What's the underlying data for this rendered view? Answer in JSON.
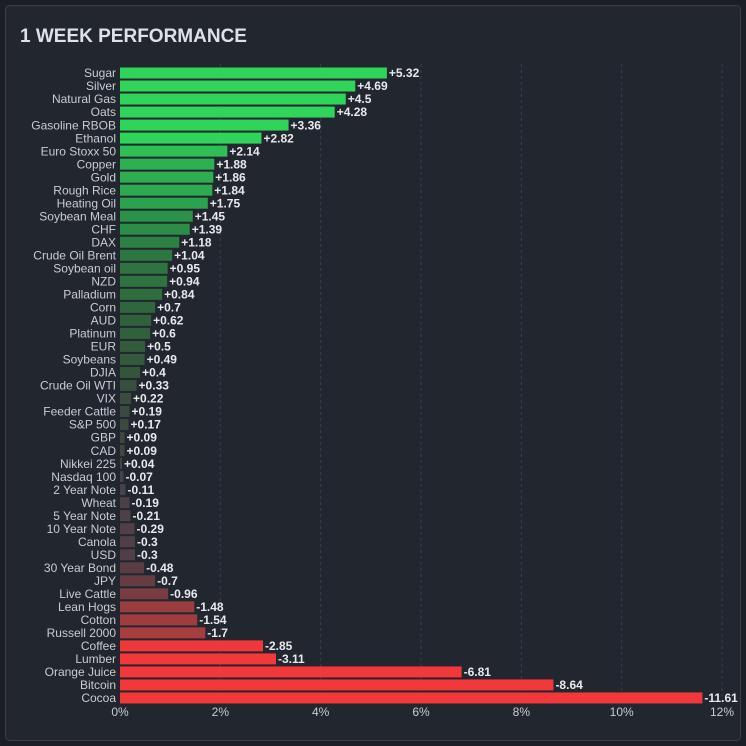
{
  "chart_data": {
    "type": "hbar",
    "title": "1 WEEK PERFORMANCE",
    "categories": [
      "Sugar",
      "Silver",
      "Natural Gas",
      "Oats",
      "Gasoline RBOB",
      "Ethanol",
      "Euro Stoxx 50",
      "Copper",
      "Gold",
      "Rough Rice",
      "Heating Oil",
      "Soybean Meal",
      "CHF",
      "DAX",
      "Crude Oil Brent",
      "Soybean oil",
      "NZD",
      "Palladium",
      "Corn",
      "AUD",
      "Platinum",
      "EUR",
      "Soybeans",
      "DJIA",
      "Crude Oil WTI",
      "VIX",
      "Feeder Cattle",
      "S&P 500",
      "GBP",
      "CAD",
      "Nikkei 225",
      "Nasdaq 100",
      "2 Year Note",
      "Wheat",
      "5 Year Note",
      "10 Year Note",
      "Canola",
      "USD",
      "30 Year Bond",
      "JPY",
      "Live Cattle",
      "Lean Hogs",
      "Cotton",
      "Russell 2000",
      "Coffee",
      "Lumber",
      "Orange Juice",
      "Bitcoin",
      "Cocoa"
    ],
    "values": [
      5.32,
      4.69,
      4.5,
      4.28,
      3.36,
      2.82,
      2.14,
      1.88,
      1.86,
      1.84,
      1.75,
      1.45,
      1.39,
      1.18,
      1.04,
      0.95,
      0.94,
      0.84,
      0.7,
      0.62,
      0.6,
      0.5,
      0.49,
      0.4,
      0.33,
      0.22,
      0.19,
      0.17,
      0.09,
      0.09,
      0.04,
      -0.07,
      -0.11,
      -0.19,
      -0.21,
      -0.29,
      -0.3,
      -0.3,
      -0.48,
      -0.7,
      -0.96,
      -1.48,
      -1.54,
      -1.7,
      -2.85,
      -3.11,
      -6.81,
      -8.64,
      -11.61
    ],
    "value_labels": [
      "+5.32",
      "+4.69",
      "+4.5",
      "+4.28",
      "+3.36",
      "+2.82",
      "+2.14",
      "+1.88",
      "+1.86",
      "+1.84",
      "+1.75",
      "+1.45",
      "+1.39",
      "+1.18",
      "+1.04",
      "+0.95",
      "+0.94",
      "+0.84",
      "+0.7",
      "+0.62",
      "+0.6",
      "+0.5",
      "+0.49",
      "+0.4",
      "+0.33",
      "+0.22",
      "+0.19",
      "+0.17",
      "+0.09",
      "+0.09",
      "+0.04",
      "-0.07",
      "-0.11",
      "-0.19",
      "-0.21",
      "-0.29",
      "-0.3",
      "-0.3",
      "-0.48",
      "-0.7",
      "-0.96",
      "-1.48",
      "-1.54",
      "-1.7",
      "-2.85",
      "-3.11",
      "-6.81",
      "-8.64",
      "-11.61"
    ],
    "colors": [
      "#31d45a",
      "#31d45a",
      "#31d45a",
      "#31d45a",
      "#31d45a",
      "#31d45a",
      "#2fc055",
      "#2eb052",
      "#2eae51",
      "#2daa50",
      "#2ba34e",
      "#2b9249",
      "#2b8e48",
      "#2c8044",
      "#2d7842",
      "#2e7340",
      "#2e7340",
      "#2f6d3f",
      "#30653d",
      "#31603c",
      "#31603c",
      "#335a3c",
      "#335a3c",
      "#35543c",
      "#37503d",
      "#3a4b3f",
      "#3b4a40",
      "#3c4940",
      "#404642",
      "#404642",
      "#434545",
      "#454246",
      "#474247",
      "#4b4146",
      "#4c4146",
      "#503f46",
      "#503f46",
      "#503f46",
      "#5a3d44",
      "#663c43",
      "#783c42",
      "#9a3d40",
      "#9e3d40",
      "#a83d3f",
      "#f0383b",
      "#f2383b",
      "#f2383b",
      "#f2383b",
      "#f2383b"
    ],
    "xlim": [
      0,
      12
    ],
    "xticks": [
      {
        "value": 0,
        "label": "0%"
      },
      {
        "value": 2,
        "label": "2%"
      },
      {
        "value": 4,
        "label": "4%"
      },
      {
        "value": 6,
        "label": "6%"
      },
      {
        "value": 8,
        "label": "8%"
      },
      {
        "value": 10,
        "label": "10%"
      },
      {
        "value": 12,
        "label": "12%"
      }
    ],
    "grid": true
  }
}
